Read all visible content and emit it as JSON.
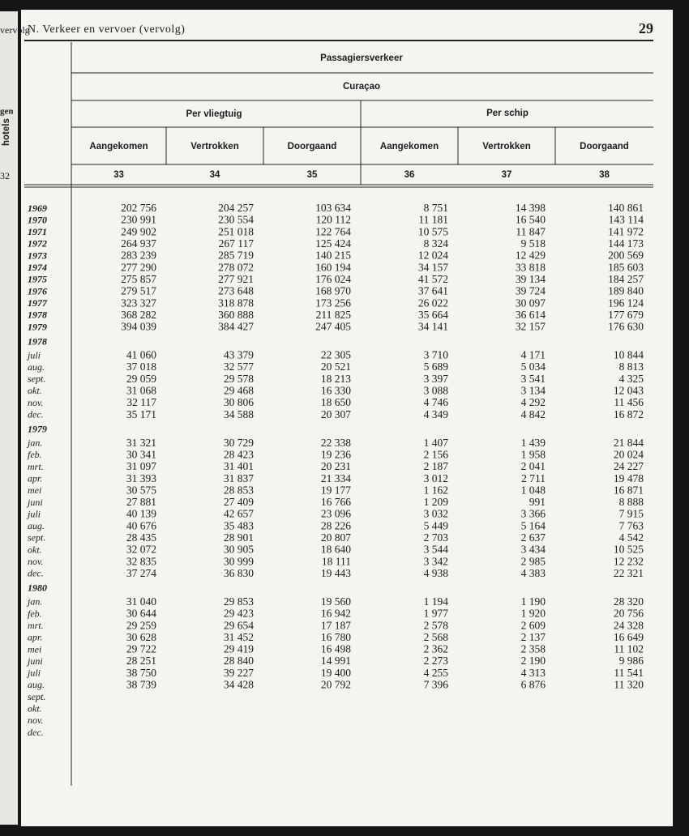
{
  "header": {
    "section": "N. Verkeer en vervoer (vervolg)",
    "page": "29"
  },
  "left_margin": [
    "vervolg",
    "gen",
    "hotels",
    "32"
  ],
  "table": {
    "header": {
      "title": "Passagiersverkeer",
      "island": "Curaçao",
      "modes": [
        "Per vliegtuig",
        "Per schip"
      ],
      "columns": [
        "Aangekomen",
        "Vertrokken",
        "Doorgaand",
        "Aangekomen",
        "Vertrokken",
        "Doorgaand"
      ],
      "numbers": [
        "33",
        "34",
        "35",
        "36",
        "37",
        "38"
      ]
    },
    "groups": [
      {
        "rows": [
          {
            "label": "1969",
            "cells": [
              "202 756",
              "204 257",
              "103 634",
              "8 751",
              "14 398",
              "140 861"
            ]
          },
          {
            "label": "1970",
            "cells": [
              "230 991",
              "230 554",
              "120 112",
              "11 181",
              "16 540",
              "143 114"
            ]
          },
          {
            "label": "1971",
            "cells": [
              "249 902",
              "251 018",
              "122 764",
              "10 575",
              "11 847",
              "141 972"
            ]
          },
          {
            "label": "1972",
            "cells": [
              "264 937",
              "267 117",
              "125 424",
              "8 324",
              "9 518",
              "144 173"
            ]
          },
          {
            "label": "1973",
            "cells": [
              "283 239",
              "285 719",
              "140 215",
              "12 024",
              "12 429",
              "200 569"
            ]
          },
          {
            "label": "1974",
            "cells": [
              "277 290",
              "278 072",
              "160 194",
              "34 157",
              "33 818",
              "185 603"
            ]
          },
          {
            "label": "1975",
            "cells": [
              "275 857",
              "277 921",
              "176 024",
              "41 572",
              "39 134",
              "184 257"
            ]
          },
          {
            "label": "1976",
            "cells": [
              "279 517",
              "273 648",
              "168 970",
              "37 641",
              "39 724",
              "189 840"
            ]
          },
          {
            "label": "1977",
            "cells": [
              "323 327",
              "318 878",
              "173 256",
              "26 022",
              "30 097",
              "196 124"
            ]
          },
          {
            "label": "1978",
            "cells": [
              "368 282",
              "360 888",
              "211 825",
              "35 664",
              "36 614",
              "177 679"
            ]
          },
          {
            "label": "1979",
            "cells": [
              "394 039",
              "384 427",
              "247 405",
              "34 141",
              "32 157",
              "176 630"
            ]
          }
        ]
      },
      {
        "year": "1978",
        "rows": [
          {
            "label": "juli",
            "cells": [
              "41 060",
              "43 379",
              "22 305",
              "3 710",
              "4 171",
              "10 844"
            ]
          },
          {
            "label": "aug.",
            "cells": [
              "37 018",
              "32 577",
              "20 521",
              "5 689",
              "5 034",
              "8 813"
            ]
          },
          {
            "label": "sept.",
            "cells": [
              "29 059",
              "29 578",
              "18 213",
              "3 397",
              "3 541",
              "4 325"
            ]
          },
          {
            "label": "okt.",
            "cells": [
              "31 068",
              "29 468",
              "16 330",
              "3 088",
              "3 134",
              "12 043"
            ]
          },
          {
            "label": "nov.",
            "cells": [
              "32 117",
              "30 806",
              "18 650",
              "4 746",
              "4 292",
              "11 456"
            ]
          },
          {
            "label": "dec.",
            "cells": [
              "35 171",
              "34 588",
              "20 307",
              "4 349",
              "4 842",
              "16 872"
            ]
          }
        ]
      },
      {
        "year": "1979",
        "rows": [
          {
            "label": "jan.",
            "cells": [
              "31 321",
              "30 729",
              "22 338",
              "1 407",
              "1 439",
              "21 844"
            ]
          },
          {
            "label": "feb.",
            "cells": [
              "30 341",
              "28 423",
              "19 236",
              "2 156",
              "1 958",
              "20 024"
            ]
          },
          {
            "label": "mrt.",
            "cells": [
              "31 097",
              "31 401",
              "20 231",
              "2 187",
              "2 041",
              "24 227"
            ]
          },
          {
            "label": "apr.",
            "cells": [
              "31 393",
              "31 837",
              "21 334",
              "3 012",
              "2 711",
              "19 478"
            ]
          },
          {
            "label": "mei",
            "cells": [
              "30 575",
              "28 853",
              "19 177",
              "1 162",
              "1 048",
              "16 871"
            ]
          },
          {
            "label": "juni",
            "cells": [
              "27 881",
              "27 409",
              "16 766",
              "1 209",
              "991",
              "8 888"
            ]
          },
          {
            "label": "juli",
            "cells": [
              "40 139",
              "42 657",
              "23 096",
              "3 032",
              "3 366",
              "7 915"
            ]
          },
          {
            "label": "aug.",
            "cells": [
              "40 676",
              "35 483",
              "28 226",
              "5 449",
              "5 164",
              "7 763"
            ]
          },
          {
            "label": "sept.",
            "cells": [
              "28 435",
              "28 901",
              "20 807",
              "2 703",
              "2 637",
              "4 542"
            ]
          },
          {
            "label": "okt.",
            "cells": [
              "32 072",
              "30 905",
              "18 640",
              "3 544",
              "3 434",
              "10 525"
            ]
          },
          {
            "label": "nov.",
            "cells": [
              "32 835",
              "30 999",
              "18 111",
              "3 342",
              "2 985",
              "12 232"
            ]
          },
          {
            "label": "dec.",
            "cells": [
              "37 274",
              "36 830",
              "19 443",
              "4 938",
              "4 383",
              "22 321"
            ]
          }
        ]
      },
      {
        "year": "1980",
        "rows": [
          {
            "label": "jan.",
            "cells": [
              "31 040",
              "29 853",
              "19 560",
              "1 194",
              "1 190",
              "28 320"
            ]
          },
          {
            "label": "feb.",
            "cells": [
              "30 644",
              "29 423",
              "16 942",
              "1 977",
              "1 920",
              "20 756"
            ]
          },
          {
            "label": "mrt.",
            "cells": [
              "29 259",
              "29 654",
              "17 187",
              "2 578",
              "2 609",
              "24 328"
            ]
          },
          {
            "label": "apr.",
            "cells": [
              "30 628",
              "31 452",
              "16 780",
              "2 568",
              "2 137",
              "16 649"
            ]
          },
          {
            "label": "mei",
            "cells": [
              "29 722",
              "29 419",
              "16 498",
              "2 362",
              "2 358",
              "11 102"
            ]
          },
          {
            "label": "juni",
            "cells": [
              "28 251",
              "28 840",
              "14 991",
              "2 273",
              "2 190",
              "9 986"
            ]
          },
          {
            "label": "juli",
            "cells": [
              "38 750",
              "39 227",
              "19 400",
              "4 255",
              "4 313",
              "11 541"
            ]
          },
          {
            "label": "aug.",
            "cells": [
              "38 739",
              "34 428",
              "20 792",
              "7 396",
              "6 876",
              "11 320"
            ]
          },
          {
            "label": "sept.",
            "cells": []
          },
          {
            "label": "okt.",
            "cells": []
          },
          {
            "label": "nov.",
            "cells": []
          },
          {
            "label": "dec.",
            "cells": []
          }
        ]
      }
    ]
  }
}
